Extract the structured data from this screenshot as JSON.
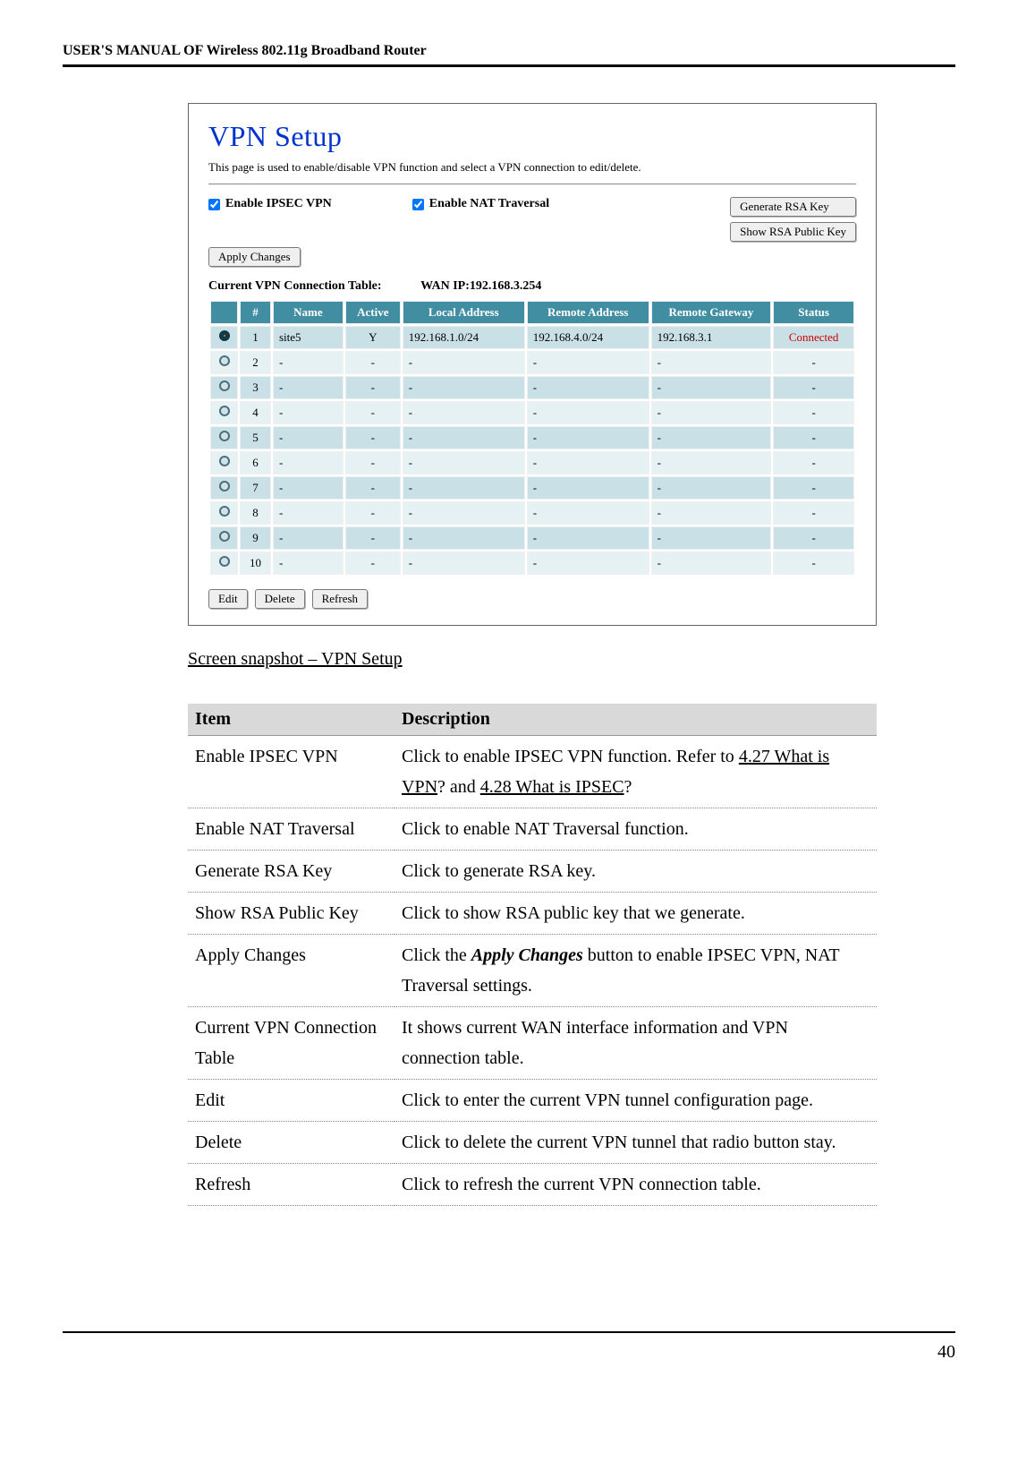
{
  "header": "USER'S MANUAL OF Wireless 802.11g Broadband Router",
  "vpn": {
    "title": "VPN Setup",
    "desc": "This page is used to enable/disable VPN function and select a VPN connection to edit/delete.",
    "cb1": "Enable IPSEC VPN",
    "cb2": "Enable NAT Traversal",
    "btn_gen": "Generate RSA Key",
    "btn_show": "Show RSA Public Key",
    "btn_apply": "Apply Changes",
    "tbl_label": "Current VPN Connection Table:",
    "wan": "WAN IP:192.168.3.254",
    "cols": {
      "num": "#",
      "name": "Name",
      "active": "Active",
      "local": "Local Address",
      "remote": "Remote Address",
      "gw": "Remote Gateway",
      "status": "Status"
    },
    "header_bg": "#418ea2",
    "header_fg": "#ffffff",
    "row_alt1": "#c9e0e6",
    "row_alt2": "#e6f1f4",
    "radio_on_bg": "#0a3a4a",
    "radio_on_dot": "#ff7a00",
    "radio_off_border": "#4a6f7a",
    "radio_off_bg": "#cfe3e9",
    "status_color": "#cc0000",
    "rows": [
      {
        "n": "1",
        "name": "site5",
        "active": "Y",
        "local": "192.168.1.0/24",
        "remote": "192.168.4.0/24",
        "gw": "192.168.3.1",
        "status": "Connected",
        "sel": true
      },
      {
        "n": "2",
        "name": "-",
        "active": "-",
        "local": "-",
        "remote": "-",
        "gw": "-",
        "status": "-",
        "sel": false
      },
      {
        "n": "3",
        "name": "-",
        "active": "-",
        "local": "-",
        "remote": "-",
        "gw": "-",
        "status": "-",
        "sel": false
      },
      {
        "n": "4",
        "name": "-",
        "active": "-",
        "local": "-",
        "remote": "-",
        "gw": "-",
        "status": "-",
        "sel": false
      },
      {
        "n": "5",
        "name": "-",
        "active": "-",
        "local": "-",
        "remote": "-",
        "gw": "-",
        "status": "-",
        "sel": false
      },
      {
        "n": "6",
        "name": "-",
        "active": "-",
        "local": "-",
        "remote": "-",
        "gw": "-",
        "status": "-",
        "sel": false
      },
      {
        "n": "7",
        "name": "-",
        "active": "-",
        "local": "-",
        "remote": "-",
        "gw": "-",
        "status": "-",
        "sel": false
      },
      {
        "n": "8",
        "name": "-",
        "active": "-",
        "local": "-",
        "remote": "-",
        "gw": "-",
        "status": "-",
        "sel": false
      },
      {
        "n": "9",
        "name": "-",
        "active": "-",
        "local": "-",
        "remote": "-",
        "gw": "-",
        "status": "-",
        "sel": false
      },
      {
        "n": "10",
        "name": "-",
        "active": "-",
        "local": "-",
        "remote": "-",
        "gw": "-",
        "status": "-",
        "sel": false
      }
    ],
    "btn_edit": "Edit",
    "btn_delete": "Delete",
    "btn_refresh": "Refresh"
  },
  "caption": "Screen snapshot – VPN Setup",
  "desc": {
    "h1": "Item",
    "h2": "Description",
    "rows": [
      {
        "a": "Enable IPSEC VPN",
        "b": "Click to enable IPSEC VPN function. Refer to <span class='u'>4.27 What is VPN</span>? and <span class='u'>4.28 What is IPSEC</span>?"
      },
      {
        "a": "Enable NAT Traversal",
        "b": "Click to enable NAT Traversal function."
      },
      {
        "a": "Generate RSA Key",
        "b": "Click to generate RSA key."
      },
      {
        "a": "Show RSA Public Key",
        "b": "Click to show RSA public key that we generate."
      },
      {
        "a": "Apply Changes",
        "b": "Click the <span class='i'><b>Apply Changes</b></span> button to enable IPSEC VPN, NAT Traversal settings."
      },
      {
        "a": "Current VPN Connection Table",
        "b": "It shows current WAN interface information and VPN connection table."
      },
      {
        "a": "Edit",
        "b": "Click to enter the current VPN tunnel configuration page."
      },
      {
        "a": "Delete",
        "b": "Click to delete the current VPN tunnel that radio button stay."
      },
      {
        "a": "Refresh",
        "b": "Click to refresh the current VPN connection table."
      }
    ]
  },
  "page_no": "40"
}
